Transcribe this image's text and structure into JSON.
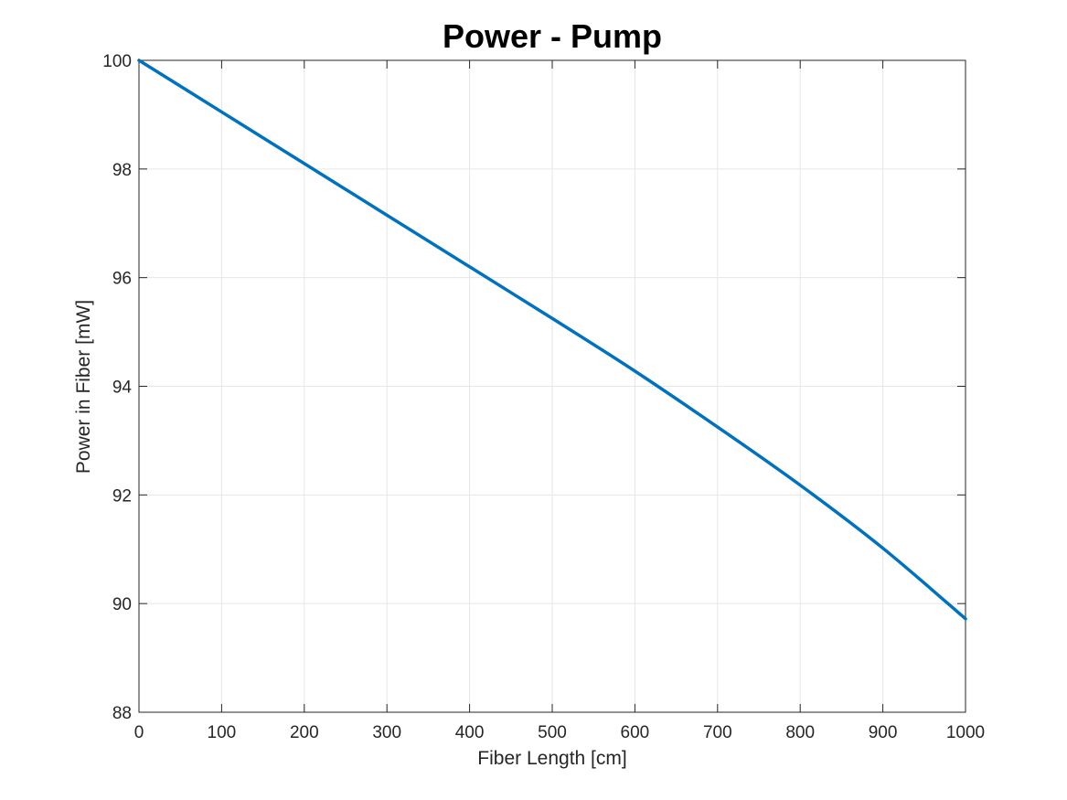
{
  "chart_data": {
    "type": "line",
    "title": "Power - Pump",
    "xlabel": "Fiber Length [cm]",
    "ylabel": "Power in Fiber [mW]",
    "xlim": [
      0,
      1000
    ],
    "ylim": [
      88,
      100
    ],
    "xticks": [
      0,
      100,
      200,
      300,
      400,
      500,
      600,
      700,
      800,
      900,
      1000
    ],
    "yticks": [
      88,
      90,
      92,
      94,
      96,
      98,
      100
    ],
    "grid": true,
    "box": true,
    "series": [
      {
        "color": "#0072BD",
        "x": [
          0,
          100,
          200,
          300,
          400,
          500,
          600,
          700,
          800,
          900,
          1000
        ],
        "y": [
          100,
          99.05,
          98.1,
          97.15,
          96.2,
          95.25,
          94.28,
          93.25,
          92.18,
          91.02,
          89.72
        ]
      }
    ]
  }
}
